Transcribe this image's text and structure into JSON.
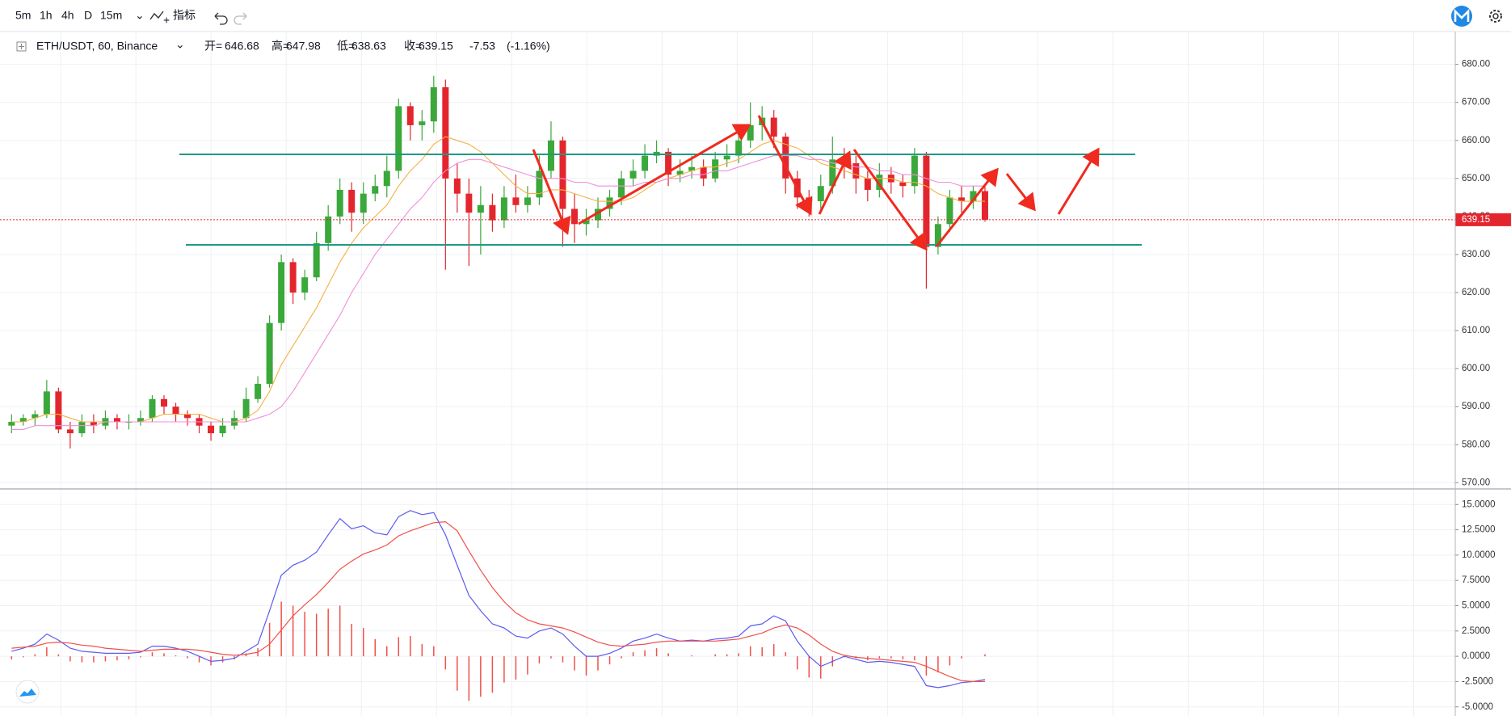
{
  "toolbar": {
    "intervals": [
      "5m",
      "1h",
      "4h",
      "D",
      "15m"
    ],
    "active_index": 1,
    "indicators_button": "指标"
  },
  "chart_data": [
    {
      "type": "candlestick",
      "symbol": "ETH/USDT, 60, Binance",
      "legend": [
        {
          "label": "开=",
          "value": 646.68
        },
        {
          "label": "高=",
          "value": 647.98
        },
        {
          "label": "低=",
          "value": 638.63
        },
        {
          "label": "收=",
          "value": 639.15
        }
      ],
      "change": -7.53,
      "change_pct": {
        "value": -1.16,
        "label": "(-1.16%)"
      },
      "open": [
        585,
        586,
        587,
        588,
        594,
        584,
        583,
        586,
        585,
        587,
        586,
        586,
        587,
        592,
        590,
        588,
        587,
        585,
        583,
        585,
        587,
        592,
        596,
        612,
        628,
        620,
        624,
        633,
        640,
        647,
        641,
        646,
        648,
        652,
        669,
        664,
        665,
        674,
        650,
        646,
        641,
        643,
        639,
        645,
        643,
        645,
        652,
        660,
        642,
        638,
        639,
        642,
        645,
        650,
        652,
        656,
        657,
        651,
        652,
        653,
        650,
        655,
        656,
        660,
        664,
        666,
        661,
        650,
        645,
        644,
        648,
        655,
        654,
        650,
        647,
        651,
        649,
        648,
        656,
        632,
        638,
        645,
        644,
        646.68
      ],
      "high": [
        588,
        588,
        589,
        597,
        595,
        586,
        588,
        588,
        589,
        588,
        588,
        589,
        593,
        593,
        591,
        589,
        588,
        586,
        587,
        589,
        595,
        598,
        614,
        630,
        629,
        626,
        636,
        643,
        650,
        649,
        649,
        651,
        656,
        671,
        670,
        668,
        677,
        676,
        654,
        650,
        648,
        646,
        648,
        651,
        648,
        656,
        665,
        661,
        646,
        642,
        645,
        647,
        652,
        655,
        659,
        660,
        658,
        655,
        656,
        655,
        657,
        659,
        663,
        670,
        669,
        668,
        662,
        652,
        647,
        651,
        661,
        658,
        656,
        652,
        654,
        653,
        651,
        658,
        657,
        640,
        647,
        648,
        648,
        647.98
      ],
      "low": [
        583,
        585,
        585,
        587,
        583,
        579,
        582,
        583,
        584,
        584,
        584,
        585,
        586,
        588,
        586,
        585,
        583,
        581,
        582,
        584,
        586,
        591,
        595,
        610,
        617,
        618,
        623,
        631,
        638,
        636,
        638,
        644,
        645,
        650,
        660,
        660,
        662,
        626,
        641,
        627,
        630,
        636,
        637,
        641,
        641,
        643,
        650,
        632,
        633,
        635,
        637,
        640,
        643,
        648,
        650,
        654,
        648,
        649,
        650,
        648,
        649,
        653,
        654,
        658,
        660,
        658,
        646,
        642,
        640,
        642,
        646,
        650,
        646,
        644,
        645,
        646,
        645,
        646,
        621,
        630,
        636,
        641,
        642,
        638.63
      ],
      "close": [
        586,
        587,
        588,
        594,
        584,
        583,
        586,
        585,
        587,
        586,
        586,
        587,
        592,
        590,
        588,
        587,
        585,
        583,
        585,
        587,
        592,
        596,
        612,
        628,
        620,
        624,
        633,
        640,
        647,
        641,
        646,
        648,
        652,
        669,
        664,
        665,
        674,
        650,
        646,
        641,
        643,
        639,
        645,
        643,
        645,
        652,
        660,
        642,
        638,
        639,
        642,
        645,
        650,
        652,
        656,
        657,
        651,
        652,
        653,
        650,
        655,
        656,
        660,
        664,
        666,
        661,
        650,
        645,
        644,
        648,
        655,
        654,
        650,
        647,
        651,
        649,
        648,
        656,
        632,
        638,
        645,
        644,
        646.68,
        639.15
      ],
      "up_color": "#3aa83a",
      "down_color": "#e3262e",
      "moving_averages": [
        {
          "color": "#f5b041",
          "values": [
            586,
            586,
            587,
            588,
            588,
            587,
            586,
            586,
            586,
            586,
            586,
            586,
            587,
            588,
            588,
            588,
            588,
            587,
            586,
            586,
            587,
            589,
            594,
            601,
            606,
            611,
            616,
            622,
            628,
            633,
            637,
            640,
            643,
            648,
            652,
            655,
            659,
            661,
            660,
            659,
            657,
            654,
            651,
            648,
            646,
            646,
            647,
            647,
            646,
            645,
            644,
            644,
            644,
            645,
            647,
            649,
            650,
            651,
            652,
            653,
            653,
            654,
            655,
            657,
            659,
            660,
            659,
            658,
            656,
            654,
            653,
            652,
            651,
            650,
            650,
            650,
            649,
            649,
            648,
            646,
            645,
            644,
            644,
            644
          ]
        },
        {
          "color": "#f08fd8",
          "values": [
            584,
            584,
            585,
            585,
            585,
            585,
            585,
            585,
            586,
            586,
            586,
            586,
            586,
            586,
            586,
            586,
            586,
            586,
            586,
            586,
            586,
            587,
            588,
            590,
            594,
            599,
            604,
            609,
            614,
            620,
            625,
            630,
            634,
            638,
            642,
            645,
            649,
            652,
            654,
            655,
            655,
            654,
            653,
            652,
            651,
            650,
            650,
            650,
            649,
            649,
            648,
            648,
            648,
            648,
            649,
            649,
            650,
            650,
            651,
            651,
            652,
            652,
            653,
            654,
            655,
            656,
            656,
            656,
            655,
            655,
            654,
            654,
            653,
            653,
            652,
            652,
            651,
            651,
            650,
            649,
            649,
            648,
            648,
            648
          ]
        }
      ],
      "ylim": [
        569,
        688
      ],
      "yticks": [
        {
          "value": 570,
          "label": "570.00"
        },
        {
          "value": 580,
          "label": "580.00"
        },
        {
          "value": 590,
          "label": "590.00"
        },
        {
          "value": 600,
          "label": "600.00"
        },
        {
          "value": 610,
          "label": "610.00"
        },
        {
          "value": 620,
          "label": "620.00"
        },
        {
          "value": 630,
          "label": "630.00"
        },
        {
          "value": 640,
          "label": "640.00"
        },
        {
          "value": 650,
          "label": "650.00"
        },
        {
          "value": 660,
          "label": "660.00"
        },
        {
          "value": 670,
          "label": "670.00"
        },
        {
          "value": 680,
          "label": "680.00"
        }
      ],
      "grid": true
    },
    {
      "type": "macd",
      "series": [
        {
          "color": "#5b5bf0",
          "values": [
            0.5,
            0.8,
            1.2,
            2.2,
            1.6,
            0.8,
            0.5,
            0.4,
            0.3,
            0.3,
            0.3,
            0.4,
            1.0,
            1.0,
            0.8,
            0.5,
            0.0,
            -0.5,
            -0.4,
            -0.2,
            0.5,
            1.2,
            4.5,
            8.0,
            9.0,
            9.5,
            10.3,
            12.0,
            13.6,
            12.6,
            12.9,
            12.2,
            12.0,
            13.8,
            14.4,
            14.0,
            14.2,
            12.0,
            9.0,
            6.0,
            4.5,
            3.2,
            2.8,
            2.0,
            1.8,
            2.5,
            2.8,
            2.2,
            1.0,
            0.0,
            0.0,
            0.3,
            0.8,
            1.5,
            1.8,
            2.2,
            1.8,
            1.5,
            1.6,
            1.5,
            1.7,
            1.8,
            2.0,
            3.0,
            3.2,
            4.0,
            3.5,
            1.5,
            0.0,
            -1.0,
            -0.5,
            0.0,
            -0.3,
            -0.6,
            -0.5,
            -0.6,
            -0.8,
            -1.0,
            -2.9,
            -3.1,
            -2.9,
            -2.6,
            -2.5,
            -2.3
          ]
        },
        {
          "color": "#f0504a",
          "values": [
            0.8,
            0.9,
            1.0,
            1.3,
            1.4,
            1.3,
            1.1,
            1.0,
            0.8,
            0.7,
            0.6,
            0.5,
            0.6,
            0.7,
            0.7,
            0.7,
            0.6,
            0.4,
            0.2,
            0.1,
            0.2,
            0.4,
            1.2,
            2.6,
            4.0,
            5.1,
            6.1,
            7.3,
            8.6,
            9.4,
            10.1,
            10.5,
            11.0,
            11.9,
            12.4,
            12.8,
            13.2,
            13.3,
            12.4,
            10.4,
            8.5,
            6.8,
            5.4,
            4.3,
            3.6,
            3.2,
            3.0,
            2.8,
            2.4,
            1.9,
            1.4,
            1.1,
            1.0,
            1.1,
            1.2,
            1.4,
            1.5,
            1.5,
            1.5,
            1.5,
            1.5,
            1.6,
            1.7,
            2.0,
            2.3,
            2.8,
            3.1,
            2.8,
            2.1,
            1.2,
            0.5,
            0.1,
            -0.1,
            -0.2,
            -0.3,
            -0.4,
            -0.5,
            -0.6,
            -1.0,
            -1.5,
            -2.0,
            -2.4,
            -2.5,
            -2.5
          ]
        }
      ],
      "histogram": {
        "color": "#f0504a",
        "values": [
          -0.3,
          -0.1,
          0.2,
          0.9,
          0.2,
          -0.5,
          -0.6,
          -0.6,
          -0.5,
          -0.4,
          -0.3,
          -0.1,
          0.4,
          0.3,
          0.1,
          -0.2,
          -0.6,
          -0.9,
          -0.6,
          -0.3,
          0.3,
          0.8,
          3.3,
          5.4,
          5.0,
          4.4,
          4.2,
          4.7,
          5.0,
          3.2,
          2.8,
          1.7,
          1.0,
          1.9,
          2.0,
          1.2,
          1.0,
          -1.3,
          -3.4,
          -4.4,
          -4.0,
          -3.6,
          -2.6,
          -2.3,
          -1.8,
          -0.7,
          -0.2,
          -0.6,
          -1.4,
          -1.9,
          -1.4,
          -0.8,
          -0.2,
          0.4,
          0.6,
          0.8,
          0.3,
          0.0,
          0.1,
          0.0,
          0.2,
          0.2,
          0.3,
          1.0,
          0.9,
          1.2,
          0.4,
          -1.3,
          -2.1,
          -2.2,
          -1.0,
          -0.1,
          -0.2,
          -0.4,
          -0.2,
          -0.2,
          -0.3,
          -0.4,
          -1.9,
          -1.6,
          -0.9,
          -0.2,
          0.0,
          0.2
        ]
      },
      "ylim": [
        -5.9,
        16.3
      ],
      "yticks": [
        {
          "value": -5,
          "label": "-5.0000"
        },
        {
          "value": -2.5,
          "label": "-2.5000"
        },
        {
          "value": 0,
          "label": "0.0000"
        },
        {
          "value": 2.5,
          "label": "2.5000"
        },
        {
          "value": 5,
          "label": "5.0000"
        },
        {
          "value": 7.5,
          "label": "7.5000"
        },
        {
          "value": 10,
          "label": "10.0000"
        },
        {
          "value": 12.5,
          "label": "12.5000"
        },
        {
          "value": 15,
          "label": "15.0000"
        }
      ],
      "grid": true
    }
  ]
}
